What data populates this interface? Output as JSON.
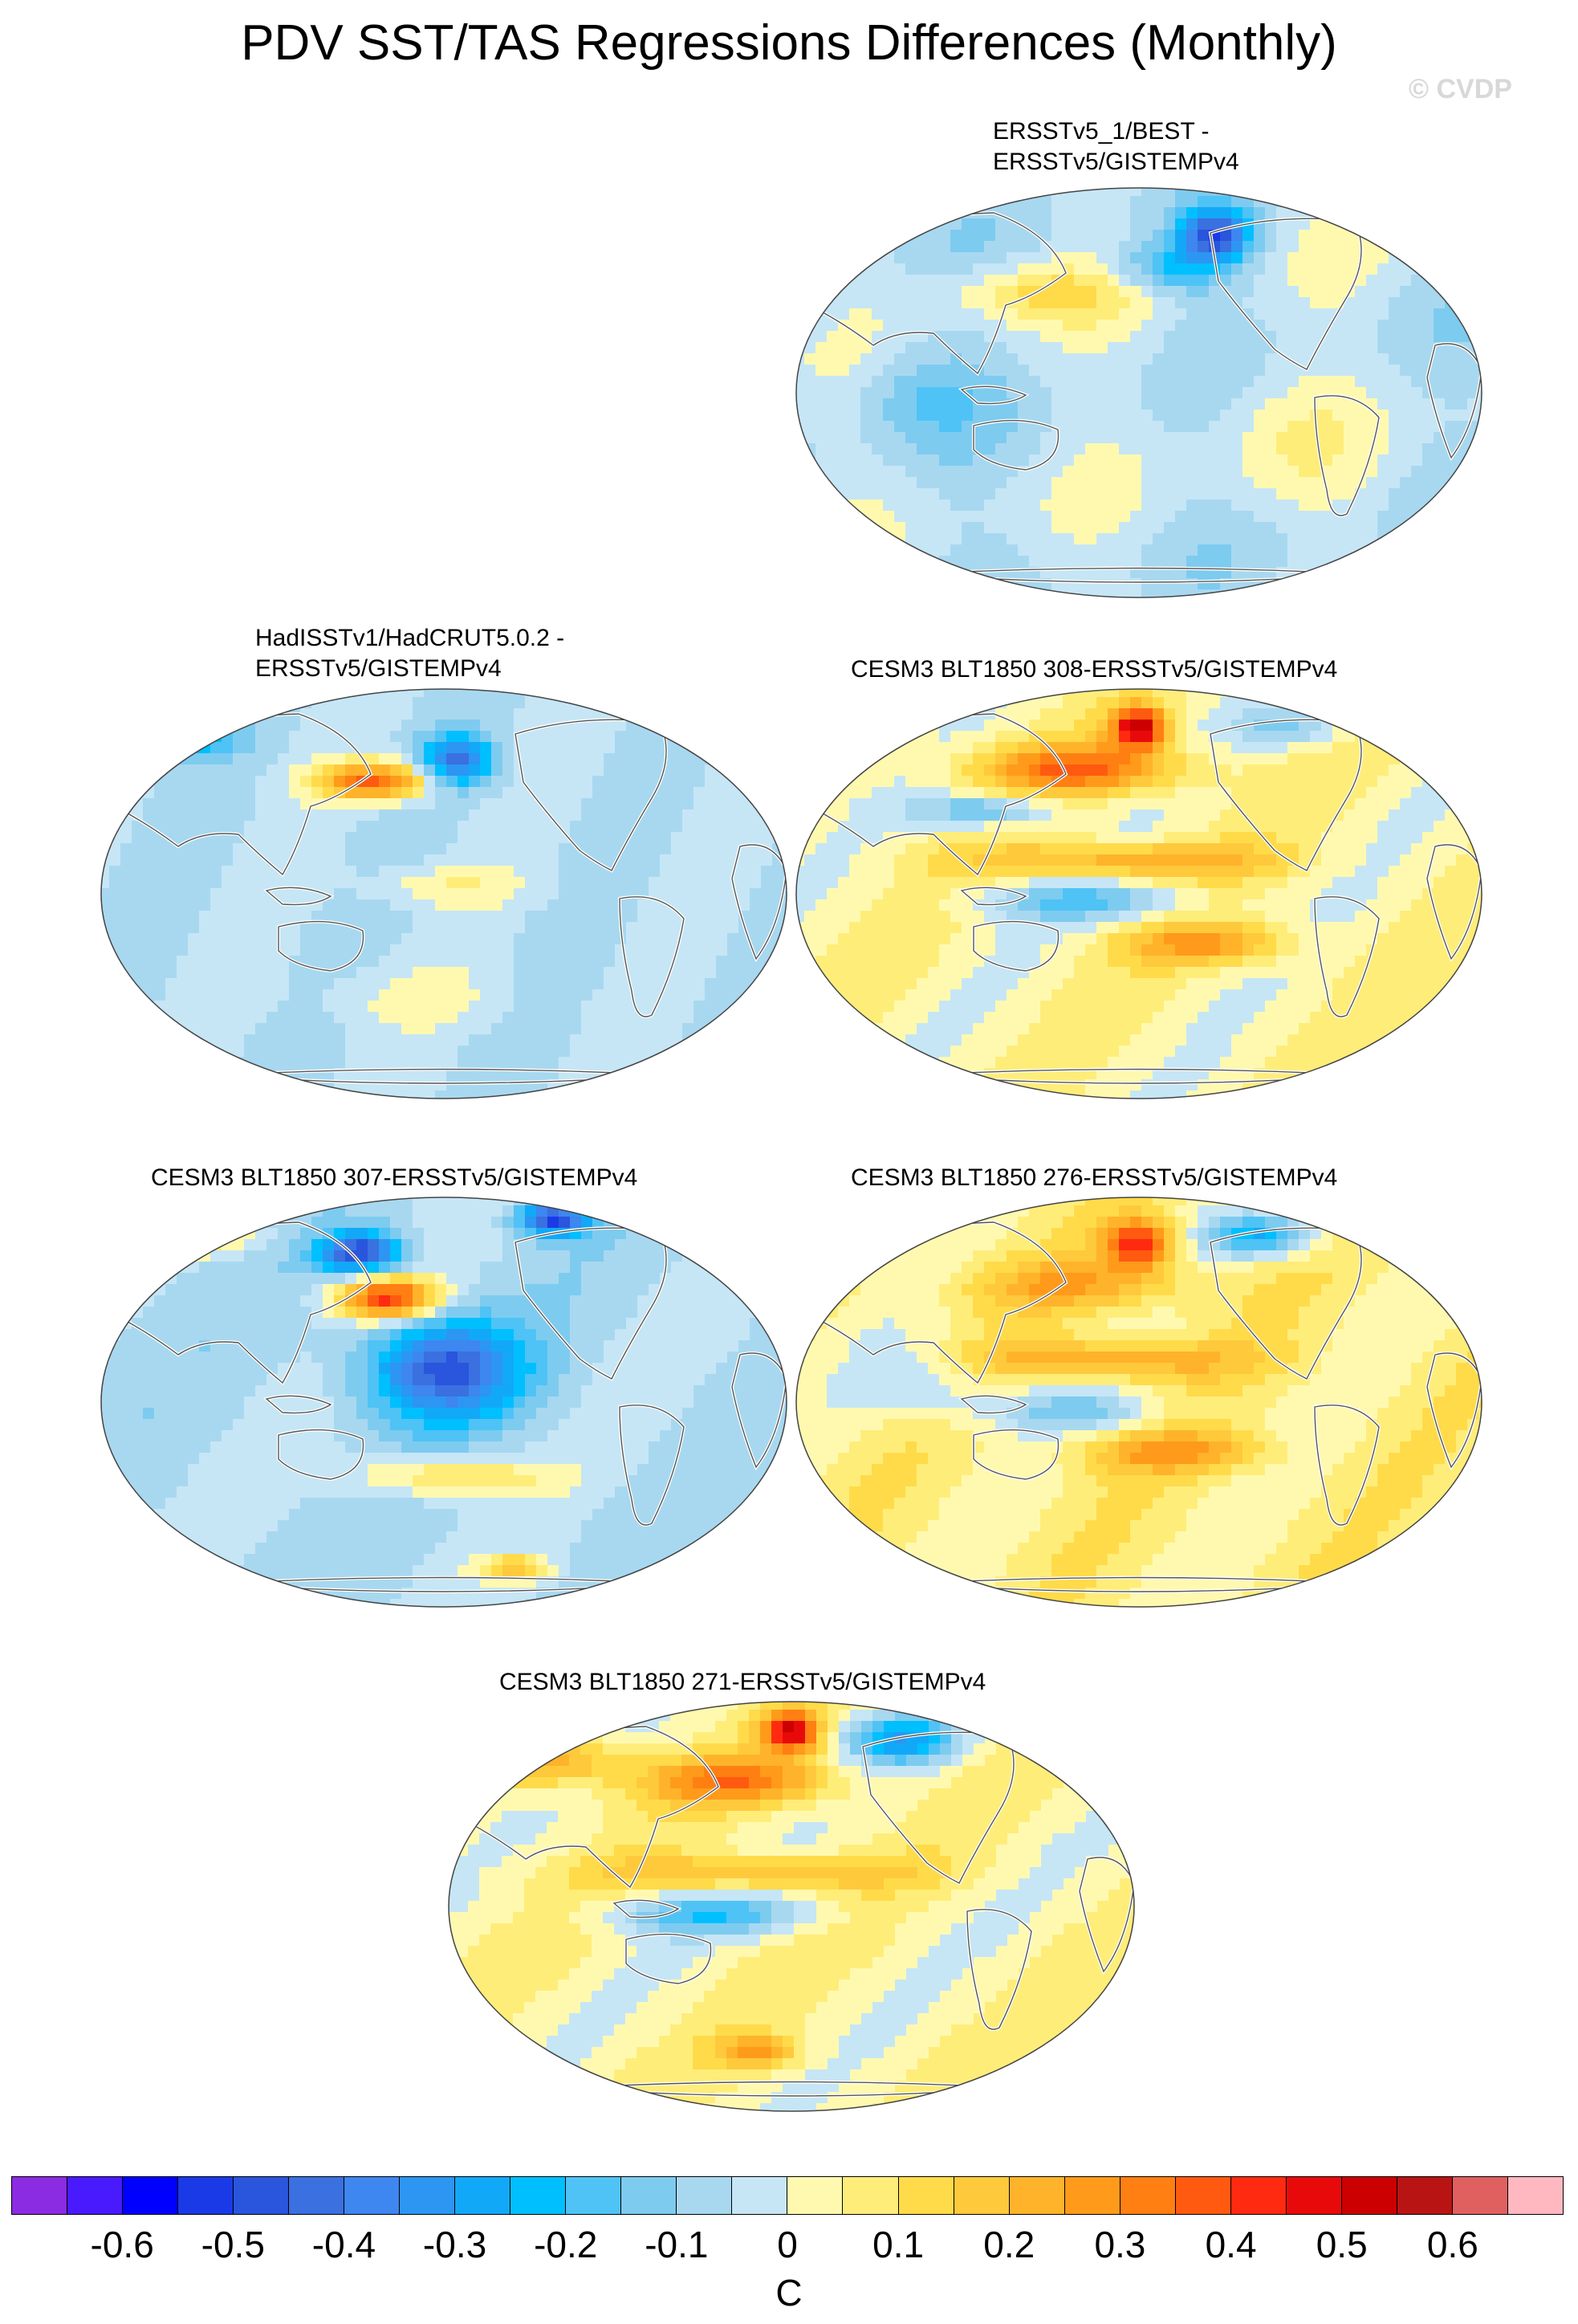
{
  "title": "PDV SST/TAS Regressions Differences (Monthly)",
  "watermark": "© CVDP",
  "panels": [
    {
      "title": "ERSSTv5_1/BEST -\nERSSTv5/GISTEMPv4",
      "variant": "obs1"
    },
    {
      "title": "HadISSTv1/HadCRUT5.0.2 -\nERSSTv5/GISTEMPv4",
      "variant": "obs2"
    },
    {
      "title": "CESM3 BLT1850 308-ERSSTv5/GISTEMPv4",
      "variant": "m308"
    },
    {
      "title": "CESM3 BLT1850 307-ERSSTv5/GISTEMPv4",
      "variant": "m307"
    },
    {
      "title": "CESM3 BLT1850 276-ERSSTv5/GISTEMPv4",
      "variant": "m276"
    },
    {
      "title": "CESM3 BLT1850 271-ERSSTv5/GISTEMPv4",
      "variant": "m271"
    }
  ],
  "chart_data": {
    "type": "heatmap",
    "title": "PDV SST/TAS Regressions Differences (Monthly)",
    "projection": "Robinson (Pacific-centered)",
    "units": "C",
    "colorbar": {
      "levels": [
        -0.65,
        -0.6,
        -0.55,
        -0.5,
        -0.45,
        -0.4,
        -0.35,
        -0.3,
        -0.25,
        -0.2,
        -0.15,
        -0.1,
        -0.05,
        0,
        0.05,
        0.1,
        0.15,
        0.2,
        0.25,
        0.3,
        0.35,
        0.4,
        0.45,
        0.5,
        0.55,
        0.6,
        0.65
      ],
      "tick_labels": [
        "-0.6",
        "-0.5",
        "-0.4",
        "-0.3",
        "-0.2",
        "-0.1",
        "0",
        "0.1",
        "0.2",
        "0.3",
        "0.4",
        "0.5",
        "0.6"
      ],
      "colors": [
        "#8b2be2",
        "#4a1aff",
        "#0000ff",
        "#1a3ae8",
        "#2a55dd",
        "#3a70e0",
        "#3e86f0",
        "#2c96f2",
        "#12a8f8",
        "#00bfff",
        "#4fc3f5",
        "#7ecbf0",
        "#a8d8f0",
        "#c6e6f6",
        "#fff9b0",
        "#ffed7a",
        "#ffdb4a",
        "#ffc93c",
        "#ffb32a",
        "#ff9a1a",
        "#ff7f12",
        "#ff5a10",
        "#ff2a10",
        "#e80a0a",
        "#cc0000",
        "#b81414",
        "#e06060",
        "#ffb8c0"
      ]
    },
    "panels": [
      "ERSSTv5_1/BEST - ERSSTv5/GISTEMPv4",
      "HadISSTv1/HadCRUT5.0.2 - ERSSTv5/GISTEMPv4",
      "CESM3 BLT1850 308-ERSSTv5/GISTEMPv4",
      "CESM3 BLT1850 307-ERSSTv5/GISTEMPv4",
      "CESM3 BLT1850 276-ERSSTv5/GISTEMPv4",
      "CESM3 BLT1850 271-ERSSTv5/GISTEMPv4"
    ]
  }
}
